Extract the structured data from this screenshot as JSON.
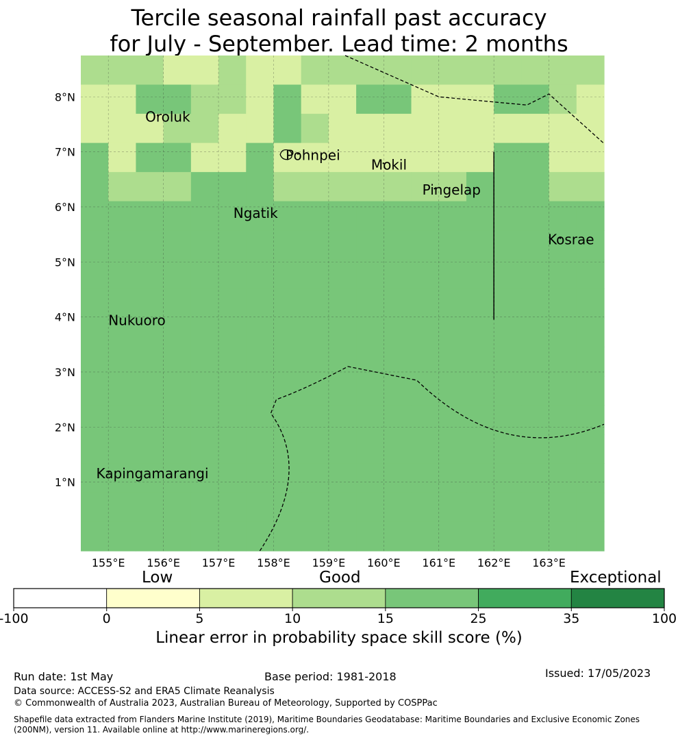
{
  "title_line1": "Tercile seasonal rainfall past accuracy",
  "title_line2": "for July - September. Lead time: 2 months",
  "chart_data": {
    "type": "heatmap",
    "x_ticks": [
      "155°E",
      "156°E",
      "157°E",
      "158°E",
      "159°E",
      "160°E",
      "161°E",
      "162°E",
      "163°E"
    ],
    "y_ticks": [
      "8°N",
      "7°N",
      "6°N",
      "5°N",
      "4°N",
      "3°N",
      "2°N",
      "1°N"
    ],
    "lon_range": [
      154.5,
      164.0
    ],
    "lat_range": [
      -0.25,
      8.75
    ],
    "colorbar": {
      "bounds": [
        -100,
        0,
        5,
        10,
        15,
        25,
        35,
        100
      ],
      "tick_labels": [
        "-100",
        "0",
        "5",
        "10",
        "15",
        "25",
        "35",
        "100"
      ],
      "colors": [
        "#ffffff",
        "#ffffcc",
        "#d9f0a3",
        "#addd8e",
        "#78c679",
        "#41ab5d",
        "#238443"
      ],
      "category_labels": [
        "Low",
        "Good",
        "Exceptional"
      ],
      "label": "Linear error in probability space skill score (%)"
    },
    "grid_classes": [
      [
        3,
        3,
        3,
        2,
        2,
        3,
        2,
        2,
        3,
        3,
        3,
        3,
        3,
        3,
        3,
        3,
        3,
        3,
        3
      ],
      [
        2,
        2,
        2,
        2,
        3,
        3,
        2,
        3,
        2,
        2,
        2,
        2,
        2,
        2,
        2,
        2,
        2,
        3,
        2
      ],
      [
        2,
        2,
        2,
        3,
        3,
        2,
        2,
        2,
        3,
        2,
        2,
        2,
        2,
        2,
        2,
        2,
        2,
        2,
        2
      ],
      [
        2,
        2,
        2,
        2,
        2,
        2,
        2,
        2,
        2,
        2,
        2,
        2,
        2,
        2,
        2,
        2,
        2,
        2,
        2
      ],
      [
        3,
        3,
        3,
        3,
        3,
        3,
        3,
        3,
        3,
        3,
        3,
        3,
        3,
        3,
        3,
        3,
        3,
        3,
        3
      ],
      [
        4,
        4,
        4,
        4,
        4,
        4,
        4,
        4,
        4,
        4,
        4,
        4,
        4,
        4,
        4,
        4,
        4,
        4,
        4
      ],
      [
        4,
        4,
        4,
        4,
        4,
        4,
        4,
        4,
        4,
        4,
        4,
        4,
        4,
        4,
        4,
        4,
        4,
        4,
        4
      ],
      [
        4,
        4,
        4,
        4,
        4,
        4,
        4,
        4,
        4,
        4,
        4,
        4,
        4,
        4,
        4,
        4,
        4,
        4,
        4
      ],
      [
        4,
        4,
        4,
        4,
        4,
        4,
        4,
        4,
        4,
        4,
        4,
        4,
        4,
        4,
        4,
        4,
        4,
        4,
        4
      ],
      [
        4,
        4,
        4,
        4,
        4,
        4,
        4,
        4,
        4,
        4,
        4,
        4,
        4,
        4,
        4,
        4,
        4,
        4,
        4
      ],
      [
        4,
        4,
        4,
        4,
        4,
        4,
        4,
        4,
        4,
        4,
        4,
        4,
        4,
        4,
        4,
        4,
        4,
        4,
        4
      ],
      [
        4,
        4,
        4,
        4,
        4,
        4,
        4,
        4,
        4,
        4,
        4,
        4,
        4,
        4,
        4,
        4,
        4,
        4,
        4
      ],
      [
        4,
        4,
        4,
        4,
        4,
        4,
        4,
        4,
        4,
        4,
        4,
        4,
        4,
        4,
        4,
        4,
        4,
        4,
        4
      ],
      [
        4,
        4,
        4,
        4,
        4,
        4,
        4,
        4,
        4,
        4,
        4,
        4,
        4,
        4,
        4,
        4,
        4,
        4,
        4
      ],
      [
        4,
        4,
        4,
        4,
        4,
        4,
        4,
        4,
        4,
        4,
        4,
        4,
        4,
        4,
        4,
        4,
        4,
        4,
        4
      ],
      [
        4,
        4,
        4,
        4,
        4,
        4,
        4,
        4,
        4,
        4,
        4,
        4,
        4,
        4,
        4,
        4,
        4,
        4,
        4
      ],
      [
        4,
        4,
        4,
        4,
        4,
        4,
        4,
        4,
        4,
        4,
        4,
        4,
        4,
        4,
        4,
        4,
        4,
        4,
        4
      ]
    ],
    "grid_overrides": [
      {
        "r": 1,
        "c": 2,
        "v": 4
      },
      {
        "r": 1,
        "c": 3,
        "v": 4
      },
      {
        "r": 1,
        "c": 7,
        "v": 4
      },
      {
        "r": 1,
        "c": 10,
        "v": 4
      },
      {
        "r": 1,
        "c": 11,
        "v": 4
      },
      {
        "r": 1,
        "c": 15,
        "v": 4
      },
      {
        "r": 1,
        "c": 16,
        "v": 4
      },
      {
        "r": 2,
        "c": 7,
        "v": 4
      },
      {
        "r": 2,
        "c": 12,
        "v": 2
      },
      {
        "r": 2,
        "c": 13,
        "v": 2
      },
      {
        "r": 2,
        "c": 15,
        "v": 2
      },
      {
        "r": 2,
        "c": 16,
        "v": 2
      },
      {
        "r": 3,
        "c": 0,
        "v": 4
      },
      {
        "r": 3,
        "c": 2,
        "v": 4
      },
      {
        "r": 3,
        "c": 3,
        "v": 4
      },
      {
        "r": 3,
        "c": 6,
        "v": 4
      },
      {
        "r": 3,
        "c": 15,
        "v": 4
      },
      {
        "r": 3,
        "c": 16,
        "v": 4
      },
      {
        "r": 4,
        "c": 0,
        "v": 4
      },
      {
        "r": 4,
        "c": 4,
        "v": 4
      },
      {
        "r": 4,
        "c": 5,
        "v": 4
      },
      {
        "r": 4,
        "c": 6,
        "v": 4
      },
      {
        "r": 4,
        "c": 14,
        "v": 4
      },
      {
        "r": 4,
        "c": 15,
        "v": 4
      },
      {
        "r": 4,
        "c": 16,
        "v": 4
      }
    ],
    "islands": [
      {
        "name": "Oroluk",
        "lon": 155.67,
        "lat": 7.55
      },
      {
        "name": "Pohnpei",
        "lon": 158.22,
        "lat": 6.85
      },
      {
        "name": "Mokil",
        "lon": 159.77,
        "lat": 6.68
      },
      {
        "name": "Pingelap",
        "lon": 160.7,
        "lat": 6.22
      },
      {
        "name": "Ngatik",
        "lon": 157.27,
        "lat": 5.8
      },
      {
        "name": "Kosrae",
        "lon": 162.98,
        "lat": 5.32
      },
      {
        "name": "Nukuoro",
        "lon": 155.0,
        "lat": 3.85
      },
      {
        "name": "Kapingamarangi",
        "lon": 154.78,
        "lat": 1.07
      }
    ]
  },
  "footer": {
    "run_date": "Run date: 1st May",
    "base_period": "Base period: 1981-2018",
    "issued": "Issued: 17/05/2023",
    "data_source": "Data source: ACCESS-S2 and ERA5 Climate Reanalysis",
    "copyright": "© Commonwealth of Australia 2023, Australian Bureau of Meteorology, Supported by COSPPac",
    "shapefile": "Shapefile data extracted from Flanders Marine Institute (2019), Maritime Boundaries Geodatabase: Maritime Boundaries and Exclusive Economic Zones (200NM), version 11. Available online at http://www.marineregions.org/."
  }
}
